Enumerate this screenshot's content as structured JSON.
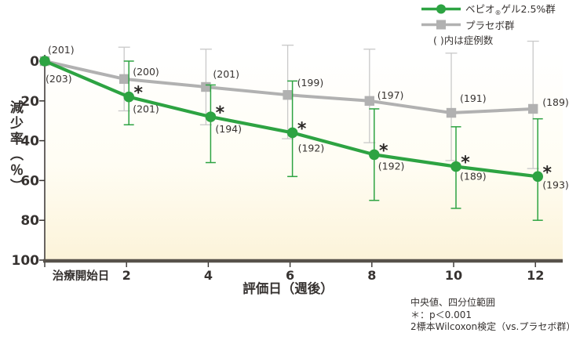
{
  "legend": {
    "bepio": {
      "prefix": "ベピオ",
      "registered_mark": "®",
      "suffix": "ゲル2.5%群"
    },
    "placebo": {
      "label": "プラセボ群"
    },
    "note": "( )内は症例数"
  },
  "footnotes": {
    "line1": "中央値、四分位範囲",
    "line2": "＊：p＜0.001",
    "line3": "2標本Wilcoxon検定（vs.プラセボ群）"
  },
  "chart_data": {
    "type": "line",
    "title": "",
    "xlabel": "評価日（週後）",
    "ylabel": "減少率（％）",
    "x_weeks": [
      0,
      2,
      4,
      6,
      8,
      10,
      12
    ],
    "x_tick_labels": [
      "治療開始日",
      "2",
      "4",
      "6",
      "8",
      "10",
      "12"
    ],
    "y_ticks": [
      0,
      20,
      40,
      60,
      80,
      100
    ],
    "ylim": [
      0,
      100
    ],
    "y_direction": "reduction-rate-increases-downward",
    "error_bar_type": "interquartile-range",
    "significance_marker": "*",
    "grid": "off",
    "legend_position": "top-right",
    "plot_bg_gradient": [
      "#ffffff",
      "#fcf3d9"
    ],
    "axis_color": "#57524b",
    "text_color": "#363230",
    "series": [
      {
        "name": "プラセボ群",
        "marker": "square",
        "color": "#b1b1b1",
        "errorbar_color": "#c9c9c9",
        "median": [
          0,
          9,
          13,
          17,
          20,
          26,
          24
        ],
        "q1": [
          0,
          -7,
          -6,
          -8,
          -6,
          -4,
          -10
        ],
        "q3": [
          0,
          25,
          32,
          39,
          41,
          50,
          54
        ],
        "n": [
          201,
          200,
          201,
          199,
          197,
          191,
          189
        ],
        "significant": [
          false,
          false,
          false,
          false,
          false,
          false,
          false
        ]
      },
      {
        "name": "ベピオ®ゲル2.5%群",
        "marker": "circle",
        "color": "#2da342",
        "errorbar_color": "#2da342",
        "median": [
          0,
          18,
          28,
          36,
          47,
          53,
          58
        ],
        "q1": [
          0,
          0,
          12,
          10,
          24,
          33,
          29
        ],
        "q3": [
          0,
          32,
          51,
          58,
          70,
          74,
          80
        ],
        "n": [
          203,
          201,
          194,
          192,
          192,
          189,
          193
        ],
        "significant": [
          false,
          true,
          true,
          true,
          true,
          true,
          true
        ]
      }
    ]
  }
}
